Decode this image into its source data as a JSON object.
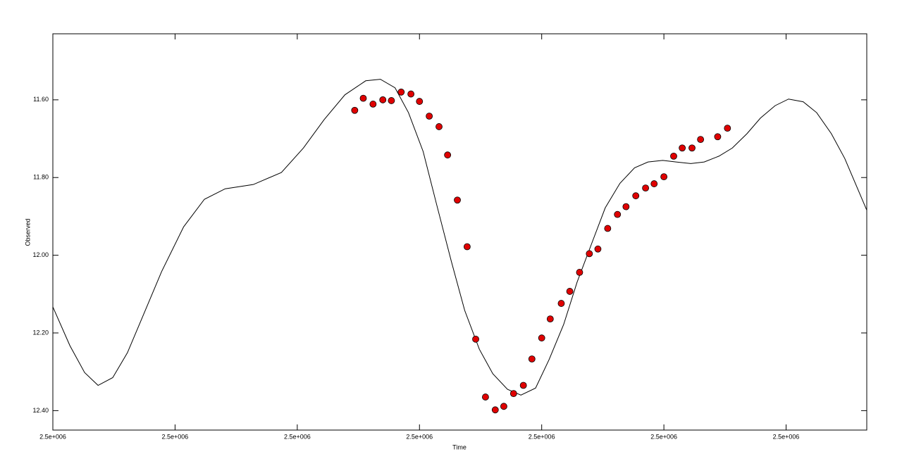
{
  "chart_data": {
    "type": "scatter",
    "xlabel": "Time",
    "ylabel": "Observed",
    "xlim": [
      2455000,
      2455666
    ],
    "ylim": [
      12.45,
      11.43
    ],
    "xticks": [
      {
        "value": 2455000,
        "label": "2.5e+006"
      },
      {
        "value": 2455100,
        "label": "2.5e+006"
      },
      {
        "value": 2455200,
        "label": "2.5e+006"
      },
      {
        "value": 2455300,
        "label": "2.5e+006"
      },
      {
        "value": 2455400,
        "label": "2.5e+006"
      },
      {
        "value": 2455500,
        "label": "2.5e+006"
      },
      {
        "value": 2455600,
        "label": "2.5e+006"
      }
    ],
    "yticks": [
      {
        "value": 11.6,
        "label": "11.60"
      },
      {
        "value": 11.8,
        "label": "11.80"
      },
      {
        "value": 12.0,
        "label": "12.00"
      },
      {
        "value": 12.2,
        "label": "12.20"
      },
      {
        "value": 12.4,
        "label": "12.40"
      }
    ],
    "series": [
      {
        "mode": "line",
        "color": "#000000",
        "x": [
          2455000,
          2455014,
          2455026,
          2455037,
          2455049,
          2455061,
          2455072,
          2455089,
          2455107,
          2455124,
          2455141,
          2455164,
          2455187,
          2455205,
          2455222,
          2455239,
          2455256,
          2455268,
          2455280,
          2455291,
          2455303,
          2455314,
          2455326,
          2455337,
          2455349,
          2455360,
          2455372,
          2455383,
          2455395,
          2455406,
          2455418,
          2455429,
          2455441,
          2455452,
          2455464,
          2455476,
          2455487,
          2455499,
          2455510,
          2455522,
          2455533,
          2455545,
          2455556,
          2455568,
          2455579,
          2455591,
          2455602,
          2455614,
          2455625,
          2455637,
          2455648,
          2455666
        ],
        "values": [
          12.133,
          12.233,
          12.302,
          12.335,
          12.315,
          12.251,
          12.169,
          12.042,
          11.927,
          11.856,
          11.829,
          11.818,
          11.787,
          11.724,
          11.651,
          11.587,
          11.551,
          11.547,
          11.569,
          11.633,
          11.733,
          11.869,
          12.015,
          12.142,
          12.242,
          12.305,
          12.345,
          12.36,
          12.342,
          12.269,
          12.178,
          12.069,
          11.969,
          11.878,
          11.815,
          11.775,
          11.76,
          11.756,
          11.76,
          11.764,
          11.76,
          11.745,
          11.724,
          11.687,
          11.647,
          11.615,
          11.598,
          11.605,
          11.633,
          11.687,
          11.751,
          11.884
        ]
      },
      {
        "mode": "markers",
        "color": "#e00000",
        "x": [
          2455247,
          2455254,
          2455262,
          2455270,
          2455277,
          2455285,
          2455293,
          2455300,
          2455308,
          2455316,
          2455323,
          2455331,
          2455339,
          2455346,
          2455354,
          2455362,
          2455369,
          2455377,
          2455385,
          2455392,
          2455400,
          2455407,
          2455416,
          2455423,
          2455431,
          2455439,
          2455446,
          2455454,
          2455462,
          2455469,
          2455477,
          2455485,
          2455492,
          2455500,
          2455508,
          2455515,
          2455523,
          2455530,
          2455544,
          2455552
        ],
        "values": [
          11.627,
          11.596,
          11.611,
          11.6,
          11.602,
          11.58,
          11.585,
          11.604,
          11.642,
          11.669,
          11.742,
          11.858,
          11.978,
          12.216,
          12.365,
          12.398,
          12.389,
          12.356,
          12.335,
          12.267,
          12.213,
          12.164,
          12.124,
          12.093,
          12.044,
          11.996,
          11.984,
          11.931,
          11.895,
          11.875,
          11.847,
          11.827,
          11.816,
          11.798,
          11.745,
          11.724,
          11.724,
          11.702,
          11.695,
          11.673
        ]
      }
    ]
  }
}
